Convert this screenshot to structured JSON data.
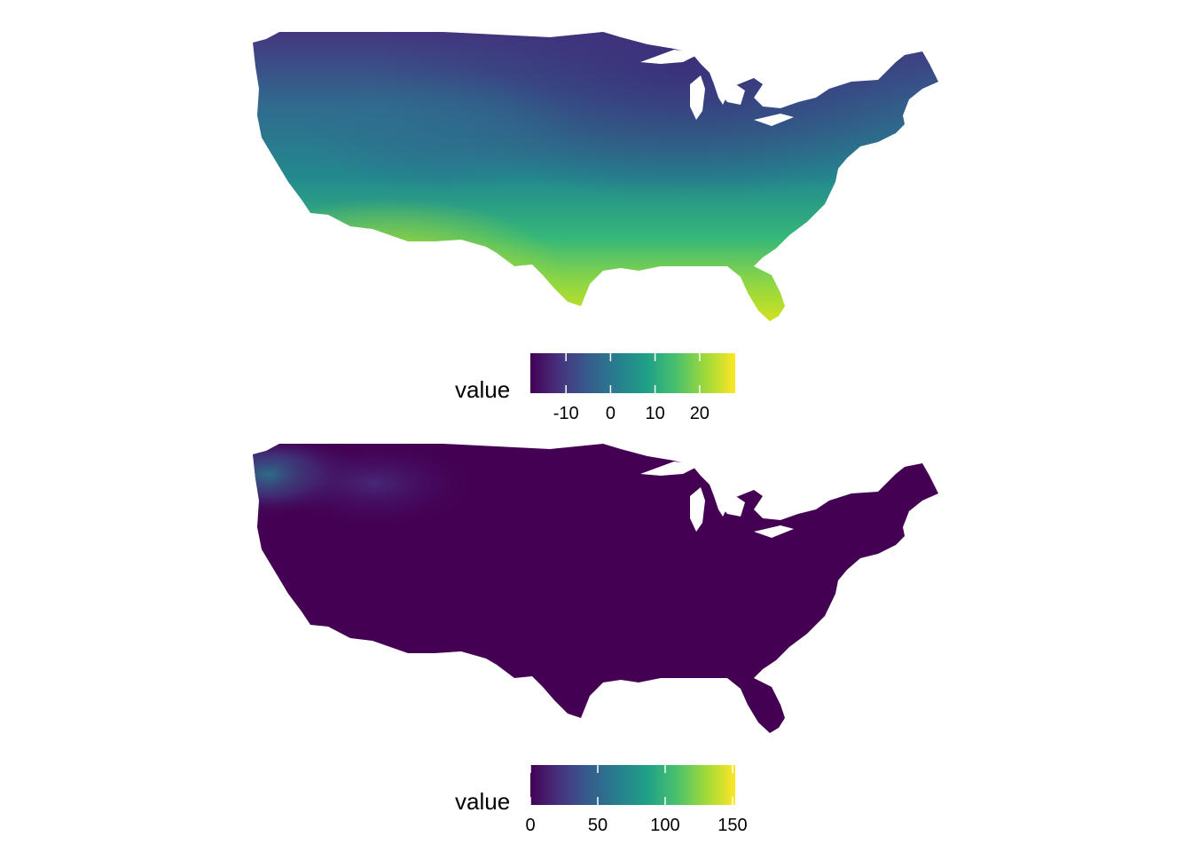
{
  "maps": [
    {
      "legend": {
        "title": "value",
        "min": -18,
        "max": 28,
        "ticks": [
          {
            "value": -10,
            "label": "-10"
          },
          {
            "value": 0,
            "label": "0"
          },
          {
            "value": 10,
            "label": "10"
          },
          {
            "value": 20,
            "label": "20"
          }
        ],
        "colormap": "viridis"
      }
    },
    {
      "legend": {
        "title": "value",
        "min": 0,
        "max": 152,
        "ticks": [
          {
            "value": 0,
            "label": "0"
          },
          {
            "value": 50,
            "label": "50"
          },
          {
            "value": 100,
            "label": "100"
          },
          {
            "value": 150,
            "label": "150"
          }
        ],
        "colormap": "viridis"
      }
    }
  ],
  "colors": {
    "viridis": [
      "#440154",
      "#46337e",
      "#365c8d",
      "#277f8e",
      "#1fa187",
      "#4ac16d",
      "#a0da39",
      "#fde725"
    ]
  }
}
